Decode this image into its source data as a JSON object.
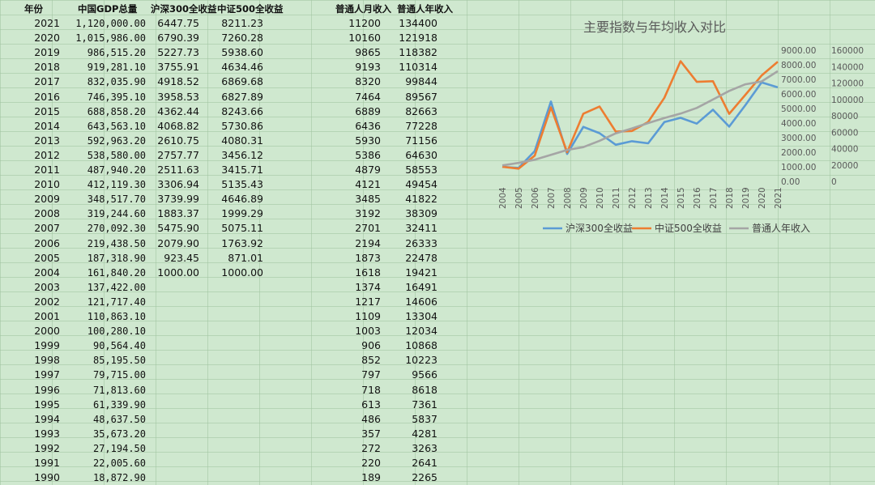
{
  "headers": {
    "year": "年份",
    "gdp": "中国GDP总量",
    "hs300": "沪深300全收益",
    "zz500": "中证500全收益",
    "monthly": "普通人月收入",
    "annual": "普通人年收入"
  },
  "rows": [
    {
      "year": "2021",
      "gdp": "1,120,000.00",
      "hs300": "6447.75",
      "zz500": "8211.23",
      "monthly": "11200",
      "annual": "134400"
    },
    {
      "year": "2020",
      "gdp": "1,015,986.00",
      "hs300": "6790.39",
      "zz500": "7260.28",
      "monthly": "10160",
      "annual": "121918"
    },
    {
      "year": "2019",
      "gdp": "986,515.20",
      "hs300": "5227.73",
      "zz500": "5938.60",
      "monthly": "9865",
      "annual": "118382"
    },
    {
      "year": "2018",
      "gdp": "919,281.10",
      "hs300": "3755.91",
      "zz500": "4634.46",
      "monthly": "9193",
      "annual": "110314"
    },
    {
      "year": "2017",
      "gdp": "832,035.90",
      "hs300": "4918.52",
      "zz500": "6869.68",
      "monthly": "8320",
      "annual": "99844"
    },
    {
      "year": "2016",
      "gdp": "746,395.10",
      "hs300": "3958.53",
      "zz500": "6827.89",
      "monthly": "7464",
      "annual": "89567"
    },
    {
      "year": "2015",
      "gdp": "688,858.20",
      "hs300": "4362.44",
      "zz500": "8243.66",
      "monthly": "6889",
      "annual": "82663"
    },
    {
      "year": "2014",
      "gdp": "643,563.10",
      "hs300": "4068.82",
      "zz500": "5730.86",
      "monthly": "6436",
      "annual": "77228"
    },
    {
      "year": "2013",
      "gdp": "592,963.20",
      "hs300": "2610.75",
      "zz500": "4080.31",
      "monthly": "5930",
      "annual": "71156"
    },
    {
      "year": "2012",
      "gdp": "538,580.00",
      "hs300": "2757.77",
      "zz500": "3456.12",
      "monthly": "5386",
      "annual": "64630"
    },
    {
      "year": "2011",
      "gdp": "487,940.20",
      "hs300": "2511.63",
      "zz500": "3415.71",
      "monthly": "4879",
      "annual": "58553"
    },
    {
      "year": "2010",
      "gdp": "412,119.30",
      "hs300": "3306.94",
      "zz500": "5135.43",
      "monthly": "4121",
      "annual": "49454"
    },
    {
      "year": "2009",
      "gdp": "348,517.70",
      "hs300": "3739.99",
      "zz500": "4646.89",
      "monthly": "3485",
      "annual": "41822"
    },
    {
      "year": "2008",
      "gdp": "319,244.60",
      "hs300": "1883.37",
      "zz500": "1999.29",
      "monthly": "3192",
      "annual": "38309"
    },
    {
      "year": "2007",
      "gdp": "270,092.30",
      "hs300": "5475.90",
      "zz500": "5075.11",
      "monthly": "2701",
      "annual": "32411"
    },
    {
      "year": "2006",
      "gdp": "219,438.50",
      "hs300": "2079.90",
      "zz500": "1763.92",
      "monthly": "2194",
      "annual": "26333"
    },
    {
      "year": "2005",
      "gdp": "187,318.90",
      "hs300": "923.45",
      "zz500": "871.01",
      "monthly": "1873",
      "annual": "22478"
    },
    {
      "year": "2004",
      "gdp": "161,840.20",
      "hs300": "1000.00",
      "zz500": "1000.00",
      "monthly": "1618",
      "annual": "19421"
    },
    {
      "year": "2003",
      "gdp": "137,422.00",
      "hs300": "",
      "zz500": "",
      "monthly": "1374",
      "annual": "16491"
    },
    {
      "year": "2002",
      "gdp": "121,717.40",
      "hs300": "",
      "zz500": "",
      "monthly": "1217",
      "annual": "14606"
    },
    {
      "year": "2001",
      "gdp": "110,863.10",
      "hs300": "",
      "zz500": "",
      "monthly": "1109",
      "annual": "13304"
    },
    {
      "year": "2000",
      "gdp": "100,280.10",
      "hs300": "",
      "zz500": "",
      "monthly": "1003",
      "annual": "12034"
    },
    {
      "year": "1999",
      "gdp": "90,564.40",
      "hs300": "",
      "zz500": "",
      "monthly": "906",
      "annual": "10868"
    },
    {
      "year": "1998",
      "gdp": "85,195.50",
      "hs300": "",
      "zz500": "",
      "monthly": "852",
      "annual": "10223"
    },
    {
      "year": "1997",
      "gdp": "79,715.00",
      "hs300": "",
      "zz500": "",
      "monthly": "797",
      "annual": "9566"
    },
    {
      "year": "1996",
      "gdp": "71,813.60",
      "hs300": "",
      "zz500": "",
      "monthly": "718",
      "annual": "8618"
    },
    {
      "year": "1995",
      "gdp": "61,339.90",
      "hs300": "",
      "zz500": "",
      "monthly": "613",
      "annual": "7361"
    },
    {
      "year": "1994",
      "gdp": "48,637.50",
      "hs300": "",
      "zz500": "",
      "monthly": "486",
      "annual": "5837"
    },
    {
      "year": "1993",
      "gdp": "35,673.20",
      "hs300": "",
      "zz500": "",
      "monthly": "357",
      "annual": "4281"
    },
    {
      "year": "1992",
      "gdp": "27,194.50",
      "hs300": "",
      "zz500": "",
      "monthly": "272",
      "annual": "3263"
    },
    {
      "year": "1991",
      "gdp": "22,005.60",
      "hs300": "",
      "zz500": "",
      "monthly": "220",
      "annual": "2641"
    },
    {
      "year": "1990",
      "gdp": "18,872.90",
      "hs300": "",
      "zz500": "",
      "monthly": "189",
      "annual": "2265"
    }
  ],
  "chart_data": {
    "type": "line",
    "title": "主要指数与年均收入对比",
    "x": [
      "2004",
      "2005",
      "2006",
      "2007",
      "2008",
      "2009",
      "2010",
      "2011",
      "2012",
      "2013",
      "2014",
      "2015",
      "2016",
      "2017",
      "2018",
      "2019",
      "2020",
      "2021"
    ],
    "series": [
      {
        "name": "沪深300全收益",
        "axis": "left",
        "color": "#5b9bd5",
        "values": [
          1000,
          923.45,
          2079.9,
          5475.9,
          1883.37,
          3739.99,
          3306.94,
          2511.63,
          2757.77,
          2610.75,
          4068.82,
          4362.44,
          3958.53,
          4918.52,
          3755.91,
          5227.73,
          6790.39,
          6447.75
        ]
      },
      {
        "name": "中证500全收益",
        "axis": "left",
        "color": "#ed7d31",
        "values": [
          1000,
          871.01,
          1763.92,
          5075.11,
          1999.29,
          4646.89,
          5135.43,
          3415.71,
          3456.12,
          4080.31,
          5730.86,
          8243.66,
          6827.89,
          6869.68,
          4634.46,
          5938.6,
          7260.28,
          8211.23
        ]
      },
      {
        "name": "普通人年收入",
        "axis": "right",
        "color": "#a5a5a5",
        "values": [
          19421,
          22478,
          26333,
          32411,
          38309,
          41822,
          49454,
          58553,
          64630,
          71156,
          77228,
          82663,
          89567,
          99844,
          110314,
          118382,
          121918,
          134400
        ]
      }
    ],
    "y_left": {
      "min": 0,
      "max": 9000,
      "ticks": [
        "0.00",
        "1000.00",
        "2000.00",
        "3000.00",
        "4000.00",
        "5000.00",
        "6000.00",
        "7000.00",
        "8000.00",
        "9000.00"
      ]
    },
    "y_right": {
      "min": 0,
      "max": 160000,
      "ticks": [
        "0",
        "20000",
        "40000",
        "60000",
        "80000",
        "100000",
        "120000",
        "140000",
        "160000"
      ]
    },
    "legend_position": "bottom",
    "grid": false
  }
}
